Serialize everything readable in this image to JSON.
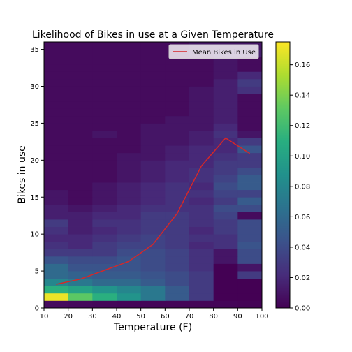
{
  "chart_data": {
    "type": "heatmap",
    "title": "Likelihood of Bikes in use at a Given Temperature",
    "xlabel": "Temperature (F)",
    "ylabel": "Bikes in use",
    "xlim": [
      10,
      100
    ],
    "ylim": [
      0,
      36
    ],
    "x_ticks": [
      10,
      20,
      30,
      40,
      50,
      60,
      70,
      80,
      90,
      100
    ],
    "y_ticks": [
      0,
      5,
      10,
      15,
      20,
      25,
      30,
      35
    ],
    "x_bin_edges": [
      10,
      20,
      30,
      40,
      50,
      60,
      70,
      80,
      90,
      100
    ],
    "y_bin_edges": [
      0,
      1,
      2,
      3,
      4,
      5,
      6,
      7,
      8,
      9,
      10,
      11,
      12,
      13,
      14,
      15,
      16,
      17,
      18,
      19,
      20,
      21,
      22,
      23,
      24,
      25,
      26,
      27,
      28,
      29,
      30,
      31,
      32,
      33,
      34,
      35,
      36
    ],
    "density_rows_bottom_to_top": [
      [
        0.005,
        0.004,
        0.003,
        0.002,
        0.002,
        0.002,
        0.002,
        0.002,
        0.001
      ],
      [
        0.17,
        0.13,
        0.11,
        0.09,
        0.07,
        0.05,
        0.03,
        0.0,
        0.0
      ],
      [
        0.11,
        0.1,
        0.09,
        0.08,
        0.07,
        0.05,
        0.03,
        0.0,
        0.0
      ],
      [
        0.08,
        0.07,
        0.06,
        0.06,
        0.05,
        0.04,
        0.03,
        0.0,
        0.0
      ],
      [
        0.06,
        0.055,
        0.05,
        0.05,
        0.045,
        0.04,
        0.03,
        0.0,
        0.03
      ],
      [
        0.06,
        0.045,
        0.045,
        0.045,
        0.04,
        0.035,
        0.025,
        0.0,
        0.01
      ],
      [
        0.045,
        0.04,
        0.04,
        0.045,
        0.04,
        0.035,
        0.025,
        0.01,
        0.04
      ],
      [
        0.03,
        0.03,
        0.03,
        0.04,
        0.04,
        0.035,
        0.025,
        0.01,
        0.04
      ],
      [
        0.025,
        0.02,
        0.03,
        0.035,
        0.035,
        0.03,
        0.02,
        0.025,
        0.045
      ],
      [
        0.02,
        0.02,
        0.025,
        0.03,
        0.035,
        0.03,
        0.025,
        0.025,
        0.04
      ],
      [
        0.025,
        0.015,
        0.02,
        0.025,
        0.03,
        0.03,
        0.02,
        0.03,
        0.04
      ],
      [
        0.03,
        0.015,
        0.025,
        0.025,
        0.03,
        0.03,
        0.025,
        0.03,
        0.04
      ],
      [
        0.015,
        0.015,
        0.02,
        0.02,
        0.03,
        0.03,
        0.025,
        0.035,
        0.005
      ],
      [
        0.015,
        0.01,
        0.015,
        0.02,
        0.025,
        0.025,
        0.025,
        0.04,
        0.04
      ],
      [
        0.01,
        0.005,
        0.01,
        0.015,
        0.02,
        0.025,
        0.02,
        0.03,
        0.05
      ],
      [
        0.01,
        0.005,
        0.01,
        0.015,
        0.02,
        0.025,
        0.025,
        0.035,
        0.035
      ],
      [
        0.005,
        0.005,
        0.01,
        0.015,
        0.02,
        0.025,
        0.02,
        0.04,
        0.05
      ],
      [
        0.005,
        0.005,
        0.005,
        0.01,
        0.015,
        0.02,
        0.025,
        0.035,
        0.05
      ],
      [
        0.005,
        0.005,
        0.005,
        0.01,
        0.015,
        0.02,
        0.025,
        0.03,
        0.04
      ],
      [
        0.005,
        0.005,
        0.005,
        0.01,
        0.015,
        0.02,
        0.02,
        0.03,
        0.03
      ],
      [
        0.005,
        0.005,
        0.005,
        0.01,
        0.01,
        0.015,
        0.02,
        0.025,
        0.03
      ],
      [
        0.005,
        0.005,
        0.005,
        0.005,
        0.01,
        0.015,
        0.02,
        0.02,
        0.045
      ],
      [
        0.005,
        0.005,
        0.005,
        0.005,
        0.01,
        0.01,
        0.015,
        0.02,
        0.03
      ],
      [
        0.005,
        0.005,
        0.01,
        0.005,
        0.01,
        0.01,
        0.015,
        0.025,
        0.01
      ],
      [
        0.005,
        0.005,
        0.005,
        0.005,
        0.01,
        0.01,
        0.01,
        0.02,
        0.005
      ],
      [
        0.005,
        0.005,
        0.005,
        0.005,
        0.005,
        0.01,
        0.01,
        0.015,
        0.005
      ],
      [
        0.005,
        0.005,
        0.005,
        0.005,
        0.005,
        0.005,
        0.01,
        0.015,
        0.005
      ],
      [
        0.005,
        0.005,
        0.005,
        0.005,
        0.005,
        0.005,
        0.01,
        0.015,
        0.005
      ],
      [
        0.005,
        0.005,
        0.005,
        0.005,
        0.005,
        0.005,
        0.01,
        0.015,
        0.005
      ],
      [
        0.005,
        0.005,
        0.005,
        0.005,
        0.005,
        0.005,
        0.01,
        0.015,
        0.025
      ],
      [
        0.005,
        0.005,
        0.005,
        0.005,
        0.005,
        0.005,
        0.005,
        0.015,
        0.03
      ],
      [
        0.005,
        0.005,
        0.005,
        0.005,
        0.005,
        0.005,
        0.005,
        0.01,
        0.02
      ],
      [
        0.005,
        0.005,
        0.005,
        0.005,
        0.005,
        0.005,
        0.005,
        0.01,
        0.005
      ],
      [
        0.005,
        0.005,
        0.005,
        0.005,
        0.005,
        0.005,
        0.005,
        0.01,
        0.005
      ],
      [
        0.005,
        0.005,
        0.005,
        0.005,
        0.005,
        0.005,
        0.01,
        0.015,
        0.015
      ],
      [
        0.005,
        0.005,
        0.005,
        0.005,
        0.005,
        0.005,
        0.01,
        0.01,
        0.01
      ]
    ],
    "colorbar": {
      "min": 0.0,
      "max": 0.175,
      "ticks": [
        "0.00",
        "0.02",
        "0.04",
        "0.06",
        "0.08",
        "0.10",
        "0.12",
        "0.14",
        "0.16"
      ]
    },
    "series": [
      {
        "name": "Mean Bikes in Use",
        "type": "line",
        "color": "#d62728",
        "x": [
          15,
          25,
          35,
          45,
          55,
          65,
          75,
          85,
          95
        ],
        "y": [
          3.2,
          3.9,
          5.1,
          6.3,
          8.6,
          12.8,
          19.2,
          23.0,
          20.9
        ]
      }
    ],
    "legend": {
      "position": "top-right"
    },
    "colormap": "viridis",
    "grid": false
  }
}
